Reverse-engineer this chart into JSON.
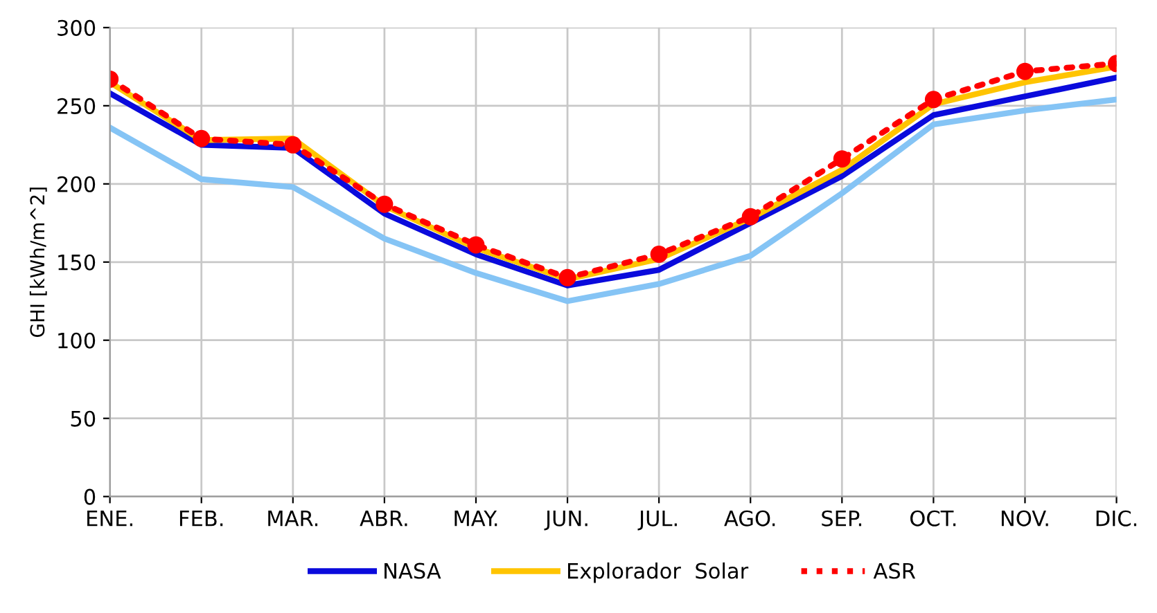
{
  "chart_data": {
    "type": "line",
    "ylabel": "GHI [kWh/m^2]",
    "categories": [
      "ENE.",
      "FEB.",
      "MAR.",
      "ABR.",
      "MAY.",
      "JUN.",
      "JUL.",
      "AGO.",
      "SEP.",
      "OCT.",
      "NOV.",
      "DIC."
    ],
    "series": [
      {
        "name": "NASA",
        "color": "#0a0adc",
        "marker": "none",
        "line_style": "solid",
        "values": [
          258,
          225,
          223,
          181,
          155,
          135,
          145,
          175,
          205,
          244,
          256,
          268
        ]
      },
      {
        "name": "Explorador  Solar",
        "color": "#ffc400",
        "marker": "none",
        "line_style": "solid",
        "values": [
          265,
          228,
          229,
          186,
          159,
          139,
          152,
          178,
          209,
          251,
          265,
          275
        ]
      },
      {
        "color": "#85c4f5",
        "marker": "none",
        "line_style": "solid",
        "values": [
          236,
          203,
          198,
          165,
          143,
          125,
          136,
          154,
          194,
          238,
          247,
          254
        ]
      },
      {
        "name": "ASR",
        "color": "#ff0000",
        "marker": "circle",
        "line_style": "dotted",
        "values": [
          267,
          229,
          225,
          187,
          161,
          140,
          155,
          179,
          216,
          254,
          272,
          277
        ]
      }
    ],
    "ylim": [
      0,
      300
    ],
    "yticks": [
      0,
      50,
      100,
      150,
      200,
      250,
      300
    ],
    "grid": true,
    "legend": "bottom"
  }
}
